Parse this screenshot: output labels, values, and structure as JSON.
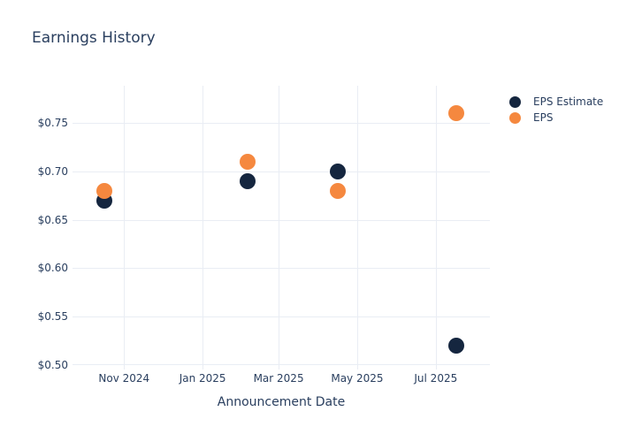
{
  "chart_data": {
    "type": "scatter",
    "title": "Earnings History",
    "xlabel": "Announcement Date",
    "ylabel": "",
    "grid": true,
    "legend_position": "right-top",
    "colors": {
      "background": "#ffffff",
      "grid": "#e9edf4",
      "text": "#2a3f5f"
    },
    "x_axis": {
      "type": "date",
      "range": [
        "2024-09-22",
        "2025-08-12"
      ],
      "ticks": [
        {
          "date": "2024-11-01",
          "label": "Nov 2024"
        },
        {
          "date": "2025-01-01",
          "label": "Jan 2025"
        },
        {
          "date": "2025-03-01",
          "label": "Mar 2025"
        },
        {
          "date": "2025-05-01",
          "label": "May 2025"
        },
        {
          "date": "2025-07-01",
          "label": "Jul 2025"
        }
      ]
    },
    "y_axis": {
      "range": [
        0.5,
        0.7885
      ],
      "ticks": [
        {
          "value": 0.5,
          "label": "$0.50"
        },
        {
          "value": 0.55,
          "label": "$0.55"
        },
        {
          "value": 0.6,
          "label": "$0.60"
        },
        {
          "value": 0.65,
          "label": "$0.65"
        },
        {
          "value": 0.7,
          "label": "$0.70"
        },
        {
          "value": 0.75,
          "label": "$0.75"
        }
      ]
    },
    "series": [
      {
        "name": "EPS Estimate",
        "color": "#15263F",
        "marker": "circle",
        "points": [
          {
            "date": "2024-10-17",
            "value": 0.67
          },
          {
            "date": "2025-02-05",
            "value": 0.69
          },
          {
            "date": "2025-04-16",
            "value": 0.7
          },
          {
            "date": "2025-07-17",
            "value": 0.52
          }
        ]
      },
      {
        "name": "EPS",
        "color": "#F5883F",
        "marker": "circle",
        "points": [
          {
            "date": "2024-10-17",
            "value": 0.68
          },
          {
            "date": "2025-02-05",
            "value": 0.71
          },
          {
            "date": "2025-04-16",
            "value": 0.68
          },
          {
            "date": "2025-07-17",
            "value": 0.76
          }
        ]
      }
    ]
  }
}
